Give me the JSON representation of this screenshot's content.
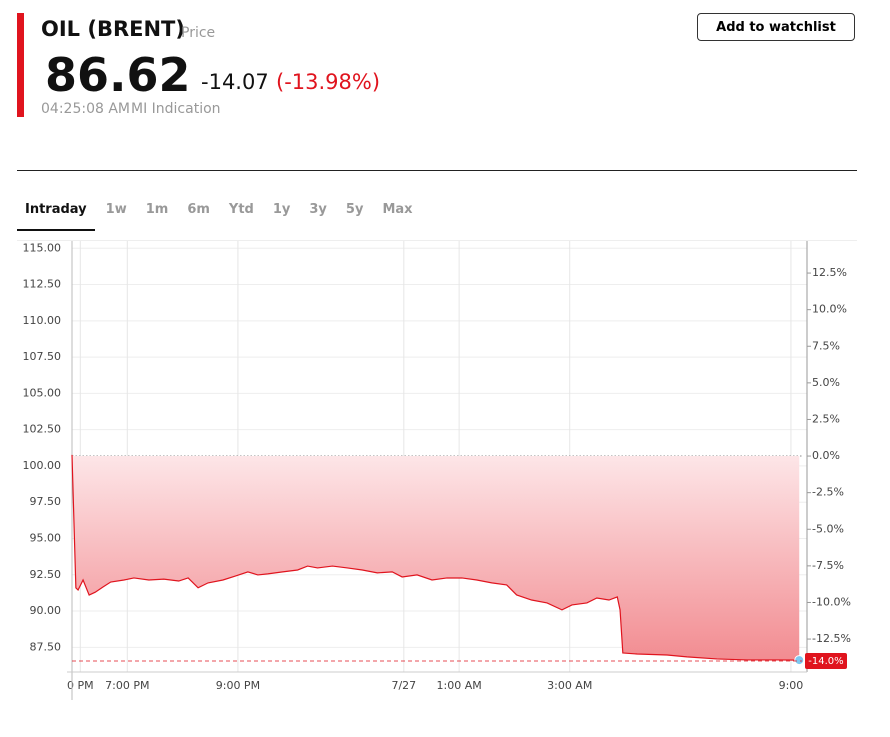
{
  "header": {
    "title": "OIL (BRENT)",
    "price_label": "Price",
    "price": 86.62,
    "change": -14.07,
    "change_percent": "(-13.98%)",
    "time": "04:25:08 AM",
    "source": "MI Indication",
    "button": "Add to watchlist"
  },
  "tabs": [
    "Intraday",
    "1w",
    "1m",
    "6m",
    "Ytd",
    "1y",
    "3y",
    "5y",
    "Max"
  ],
  "active_tab": "Intraday",
  "chart_data": {
    "type": "area",
    "x": [
      0,
      0.07,
      0.11,
      0.2,
      0.31,
      0.42,
      0.56,
      0.7,
      0.94,
      1.12,
      1.39,
      1.66,
      1.93,
      2.1,
      2.28,
      2.46,
      2.73,
      2.96,
      3.18,
      3.36,
      3.54,
      3.81,
      4.08,
      4.26,
      4.44,
      4.71,
      4.98,
      5.25,
      5.52,
      5.79,
      5.97,
      6.24,
      6.51,
      6.78,
      7.05,
      7.32,
      7.59,
      7.86,
      8.04,
      8.31,
      8.59,
      8.86,
      9.04,
      9.31,
      9.49,
      9.71,
      9.86,
      9.91,
      9.96,
      10.22,
      10.76,
      11.12,
      11.66,
      12.21,
      12.75,
      13.15
    ],
    "series": [
      {
        "color": "#e0141e",
        "values": [
          100.76,
          91.6,
          91.45,
          92.14,
          91.1,
          91.3,
          91.66,
          92.0,
          92.14,
          92.28,
          92.14,
          92.2,
          92.07,
          92.28,
          91.6,
          91.94,
          92.14,
          92.42,
          92.7,
          92.49,
          92.56,
          92.7,
          92.83,
          93.1,
          92.97,
          93.1,
          92.97,
          92.83,
          92.63,
          92.7,
          92.35,
          92.49,
          92.14,
          92.28,
          92.28,
          92.14,
          91.94,
          91.8,
          91.11,
          90.76,
          90.56,
          90.08,
          90.42,
          90.56,
          90.9,
          90.76,
          90.97,
          90.08,
          87.11,
          87.04,
          86.97,
          86.84,
          86.7,
          86.63,
          86.63,
          86.62
        ]
      }
    ],
    "xlim": [
      0,
      13.2
    ],
    "xticks": [
      {
        "value": 0.15,
        "label": "0 PM"
      },
      {
        "value": 1,
        "label": "7:00 PM"
      },
      {
        "value": 3,
        "label": "9:00 PM"
      },
      {
        "value": 6,
        "label": "7/27"
      },
      {
        "value": 7,
        "label": "1:00 AM"
      },
      {
        "value": 9,
        "label": "3:00 AM"
      },
      {
        "value": 13,
        "label": "9:00"
      }
    ],
    "ylim": [
      85.8,
      115.5
    ],
    "yticks": [
      {
        "value": 115,
        "label": "115.00"
      },
      {
        "value": 112.5,
        "label": "112.50"
      },
      {
        "value": 110,
        "label": "110.00"
      },
      {
        "value": 107.5,
        "label": "107.50"
      },
      {
        "value": 105,
        "label": "105.00"
      },
      {
        "value": 102.5,
        "label": "102.50"
      },
      {
        "value": 100,
        "label": "100.00"
      },
      {
        "value": 97.5,
        "label": "97.50"
      },
      {
        "value": 95,
        "label": "95.00"
      },
      {
        "value": 92.5,
        "label": "92.50"
      },
      {
        "value": 90,
        "label": "90.00"
      },
      {
        "value": 87.5,
        "label": "87.50"
      }
    ],
    "y2lim": [
      -14.75,
      14.69
    ],
    "y2ticks": [
      {
        "value": 12.5,
        "label": "12.5%"
      },
      {
        "value": 10,
        "label": "10.0%"
      },
      {
        "value": 7.5,
        "label": "7.5%"
      },
      {
        "value": 5,
        "label": "5.0%"
      },
      {
        "value": 2.5,
        "label": "2.5%"
      },
      {
        "value": 0,
        "label": "0.0%"
      },
      {
        "value": -2.5,
        "label": "-2.5%"
      },
      {
        "value": -5,
        "label": "-5.0%"
      },
      {
        "value": -7.5,
        "label": "-7.5%"
      },
      {
        "value": -10,
        "label": "-10.0%"
      },
      {
        "value": -12.5,
        "label": "-12.5%"
      }
    ],
    "end_marker": {
      "value": -14.0,
      "label": "-14.0%"
    },
    "grid": true
  }
}
